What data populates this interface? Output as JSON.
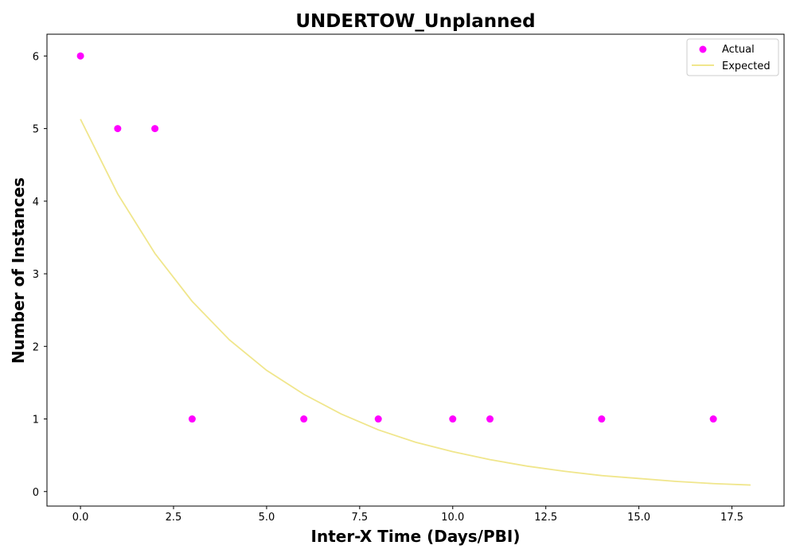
{
  "chart_data": {
    "type": "scatter",
    "title": "UNDERTOW_Unplanned",
    "xlabel": "Inter-X Time (Days/PBI)",
    "ylabel": "Number of Instances",
    "xlim": [
      -0.9,
      18.9
    ],
    "ylim": [
      -0.2,
      6.3
    ],
    "x_ticks": [
      0.0,
      2.5,
      5.0,
      7.5,
      10.0,
      12.5,
      15.0,
      17.5
    ],
    "x_tick_labels": [
      "0.0",
      "2.5",
      "5.0",
      "7.5",
      "10.0",
      "12.5",
      "15.0",
      "17.5"
    ],
    "y_ticks": [
      0,
      1,
      2,
      3,
      4,
      5,
      6
    ],
    "y_tick_labels": [
      "0",
      "1",
      "2",
      "3",
      "4",
      "5",
      "6"
    ],
    "grid": false,
    "legend_position": "top-right",
    "series": [
      {
        "name": "Actual",
        "kind": "scatter",
        "color": "#ff00ff",
        "x": [
          0,
          1,
          2,
          3,
          6,
          8,
          10,
          11,
          14,
          17
        ],
        "y": [
          6,
          5,
          5,
          1,
          1,
          1,
          1,
          1,
          1,
          1
        ]
      },
      {
        "name": "Expected",
        "kind": "line",
        "color": "#f0e68c",
        "x": [
          0,
          1,
          2,
          3,
          4,
          5,
          6,
          7,
          8,
          9,
          10,
          11,
          12,
          13,
          14,
          15,
          16,
          17,
          18
        ],
        "y": [
          5.13,
          4.1,
          3.28,
          2.62,
          2.09,
          1.67,
          1.34,
          1.07,
          0.85,
          0.68,
          0.55,
          0.44,
          0.35,
          0.28,
          0.22,
          0.18,
          0.14,
          0.11,
          0.09
        ]
      }
    ]
  }
}
